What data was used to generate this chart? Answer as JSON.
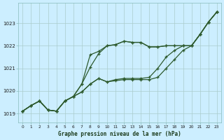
{
  "background_color": "#cceeff",
  "grid_color": "#aacccc",
  "line_color": "#2d5a2d",
  "xlabel": "Graphe pression niveau de la mer (hPa)",
  "xlim": [
    -0.5,
    23.5
  ],
  "ylim": [
    1018.6,
    1023.9
  ],
  "xticks": [
    0,
    1,
    2,
    3,
    4,
    5,
    6,
    7,
    8,
    9,
    10,
    11,
    12,
    13,
    14,
    15,
    16,
    17,
    18,
    19,
    20,
    21,
    22,
    23
  ],
  "yticks": [
    1019,
    1020,
    1021,
    1022,
    1023
  ],
  "lines": [
    [
      1019.1,
      1019.35,
      1019.55,
      1019.15,
      1019.1,
      1019.55,
      1019.75,
      1019.95,
      1020.3,
      1020.55,
      1020.4,
      1020.45,
      1020.5,
      1020.5,
      1020.5,
      1020.5,
      1020.6,
      1021.0,
      1021.4,
      1021.8,
      1022.0,
      1022.5,
      1023.05,
      1023.5
    ],
    [
      1019.1,
      1019.35,
      1019.55,
      1019.15,
      1019.1,
      1019.55,
      1019.75,
      1019.95,
      1020.3,
      1020.55,
      1020.4,
      1020.5,
      1020.55,
      1020.55,
      1020.55,
      1020.6,
      1021.0,
      1021.5,
      1021.8,
      1022.0,
      1022.0,
      1022.5,
      1023.05,
      1023.5
    ],
    [
      1019.1,
      1019.35,
      1019.55,
      1019.15,
      1019.1,
      1019.55,
      1019.75,
      1020.3,
      1021.05,
      1021.65,
      1022.0,
      1022.05,
      1022.2,
      1022.15,
      1022.15,
      1021.95,
      1021.95,
      1022.0,
      1022.0,
      1022.0,
      1022.0,
      1022.5,
      1023.05,
      1023.5
    ],
    [
      1019.1,
      1019.35,
      1019.55,
      1019.15,
      1019.1,
      1019.55,
      1019.75,
      1020.3,
      1021.6,
      1021.75,
      1022.0,
      1022.05,
      1022.2,
      1022.15,
      1022.15,
      1021.95,
      1021.95,
      1022.0,
      1022.0,
      1022.0,
      1022.0,
      1022.5,
      1023.05,
      1023.5
    ]
  ]
}
